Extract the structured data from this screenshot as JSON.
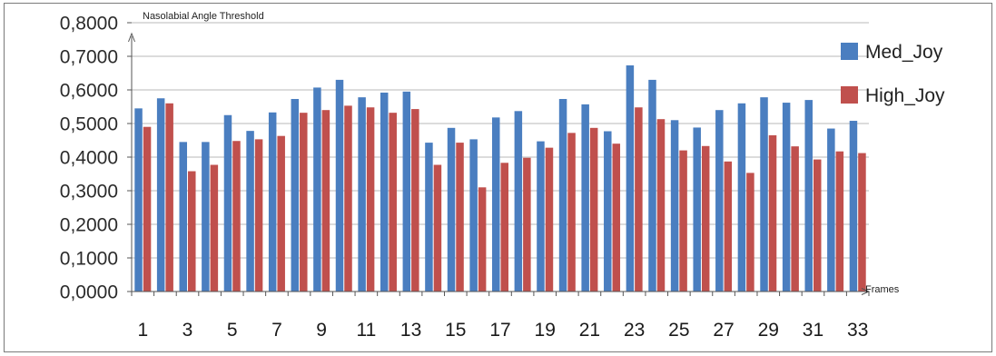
{
  "chart_data": {
    "type": "bar",
    "ylabel": "Nasolabial Angle Threshold",
    "xlabel": "Frames",
    "ylim": [
      0,
      0.8
    ],
    "ytick_values": [
      0,
      0.1,
      0.2,
      0.3,
      0.4,
      0.5,
      0.6,
      0.7,
      0.8
    ],
    "ytick_labels": [
      "0,0000",
      "0,1000",
      "0,2000",
      "0,3000",
      "0,4000",
      "0,5000",
      "0,6000",
      "0,7000",
      "0,8000"
    ],
    "categories": [
      1,
      2,
      3,
      4,
      5,
      6,
      7,
      8,
      9,
      10,
      11,
      12,
      13,
      14,
      15,
      16,
      17,
      18,
      19,
      20,
      21,
      22,
      23,
      24,
      25,
      26,
      27,
      28,
      29,
      30,
      31,
      32,
      33
    ],
    "xtick_labels": [
      "1",
      "3",
      "5",
      "7",
      "9",
      "11",
      "13",
      "15",
      "17",
      "19",
      "21",
      "23",
      "25",
      "27",
      "29",
      "31",
      "33"
    ],
    "grid": true,
    "legend_position": "right",
    "series": [
      {
        "name": "Med_Joy",
        "color": "#4a7ec0",
        "values": [
          0.545,
          0.575,
          0.445,
          0.445,
          0.525,
          0.478,
          0.533,
          0.573,
          0.607,
          0.63,
          0.578,
          0.592,
          0.595,
          0.443,
          0.487,
          0.453,
          0.518,
          0.537,
          0.447,
          0.573,
          0.557,
          0.477,
          0.673,
          0.63,
          0.51,
          0.488,
          0.54,
          0.56,
          0.578,
          0.562,
          0.57,
          0.485,
          0.508
        ]
      },
      {
        "name": "High_Joy",
        "color": "#c0504d",
        "values": [
          0.49,
          0.56,
          0.358,
          0.377,
          0.448,
          0.453,
          0.463,
          0.532,
          0.54,
          0.553,
          0.548,
          0.532,
          0.543,
          0.377,
          0.443,
          0.31,
          0.383,
          0.398,
          0.428,
          0.472,
          0.487,
          0.44,
          0.548,
          0.513,
          0.42,
          0.433,
          0.387,
          0.353,
          0.465,
          0.432,
          0.393,
          0.417,
          0.412
        ]
      }
    ]
  }
}
